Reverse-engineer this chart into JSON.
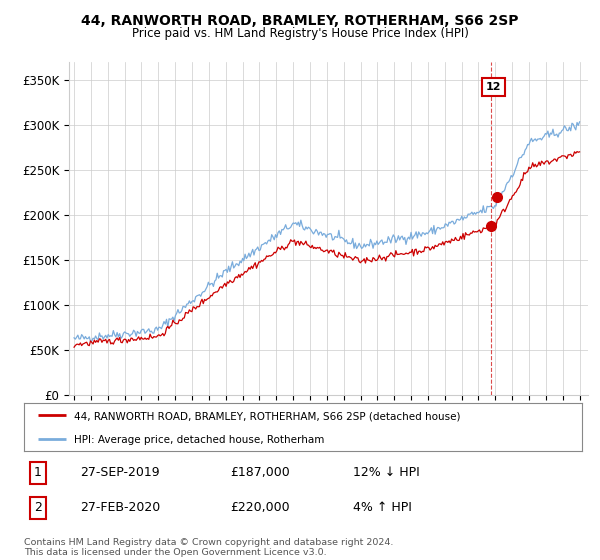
{
  "title": "44, RANWORTH ROAD, BRAMLEY, ROTHERHAM, S66 2SP",
  "subtitle": "Price paid vs. HM Land Registry's House Price Index (HPI)",
  "ylabel_ticks": [
    "£0",
    "£50K",
    "£100K",
    "£150K",
    "£200K",
    "£250K",
    "£300K",
    "£350K"
  ],
  "ytick_values": [
    0,
    50000,
    100000,
    150000,
    200000,
    250000,
    300000,
    350000
  ],
  "ylim": [
    0,
    370000
  ],
  "xlim_start": 1994.7,
  "xlim_end": 2025.5,
  "red_line_color": "#cc0000",
  "blue_line_color": "#7aacdc",
  "vline_color": "#cc0000",
  "marker1_date": 2019.73,
  "marker2_date": 2020.12,
  "marker1_price": 187000,
  "marker2_price": 220000,
  "legend_line1": "44, RANWORTH ROAD, BRAMLEY, ROTHERHAM, S66 2SP (detached house)",
  "legend_line2": "HPI: Average price, detached house, Rotherham",
  "table_row1": [
    "1",
    "27-SEP-2019",
    "£187,000",
    "12% ↓ HPI"
  ],
  "table_row2": [
    "2",
    "27-FEB-2020",
    "£220,000",
    "4% ↑ HPI"
  ],
  "footer": "Contains HM Land Registry data © Crown copyright and database right 2024.\nThis data is licensed under the Open Government Licence v3.0.",
  "background_color": "#ffffff",
  "grid_color": "#cccccc"
}
